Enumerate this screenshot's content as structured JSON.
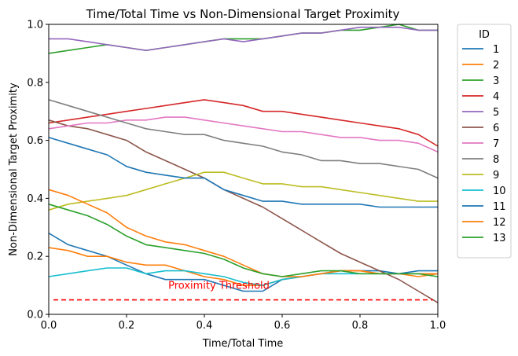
{
  "chart_data": {
    "type": "line",
    "title": "Time/Total Time vs Non-Dimensional Target Proximity",
    "xlabel": "Time/Total Time",
    "ylabel": "Non-Dimensional Target Proximity",
    "xlim": [
      0,
      1
    ],
    "ylim": [
      0,
      1
    ],
    "xticks": [
      "0.0",
      "0.2",
      "0.4",
      "0.6",
      "0.8",
      "1.0"
    ],
    "yticks": [
      "0.0",
      "0.2",
      "0.4",
      "0.6",
      "0.8",
      "1.0"
    ],
    "grid": false,
    "legend": {
      "title": "ID",
      "placement": "outside-right"
    },
    "threshold": {
      "y": 0.05,
      "label": "Proximity Threshold",
      "color": "#ff0000",
      "style": "dashed"
    },
    "x": [
      0.0,
      0.05,
      0.1,
      0.15,
      0.2,
      0.25,
      0.3,
      0.35,
      0.4,
      0.45,
      0.5,
      0.55,
      0.6,
      0.65,
      0.7,
      0.75,
      0.8,
      0.85,
      0.9,
      0.95,
      1.0
    ],
    "series": [
      {
        "name": "1",
        "color": "#1f77b4",
        "values": [
          0.28,
          0.24,
          0.22,
          0.2,
          0.17,
          0.14,
          0.12,
          0.12,
          0.12,
          0.1,
          0.08,
          0.08,
          0.12,
          0.13,
          0.14,
          0.15,
          0.15,
          0.15,
          0.14,
          0.15,
          0.15
        ]
      },
      {
        "name": "2",
        "color": "#ff7f0e",
        "values": [
          0.23,
          0.22,
          0.2,
          0.2,
          0.18,
          0.17,
          0.17,
          0.15,
          0.13,
          0.12,
          0.1,
          0.1,
          0.12,
          0.13,
          0.14,
          0.15,
          0.15,
          0.14,
          0.14,
          0.13,
          0.14
        ]
      },
      {
        "name": "3",
        "color": "#2ca02c",
        "values": [
          0.9,
          0.91,
          0.92,
          0.93,
          0.92,
          0.91,
          0.92,
          0.93,
          0.94,
          0.95,
          0.95,
          0.95,
          0.96,
          0.97,
          0.97,
          0.98,
          0.98,
          0.99,
          1.0,
          0.98,
          0.98
        ]
      },
      {
        "name": "4",
        "color": "#d62728",
        "values": [
          0.66,
          0.67,
          0.68,
          0.69,
          0.7,
          0.71,
          0.72,
          0.73,
          0.74,
          0.73,
          0.72,
          0.7,
          0.7,
          0.69,
          0.68,
          0.67,
          0.66,
          0.65,
          0.64,
          0.62,
          0.58
        ]
      },
      {
        "name": "5",
        "color": "#9467bd",
        "values": [
          0.95,
          0.95,
          0.94,
          0.93,
          0.92,
          0.91,
          0.92,
          0.93,
          0.94,
          0.95,
          0.94,
          0.95,
          0.96,
          0.97,
          0.97,
          0.98,
          0.99,
          0.99,
          0.99,
          0.98,
          0.98
        ]
      },
      {
        "name": "6",
        "color": "#8c564b",
        "values": [
          0.67,
          0.65,
          0.64,
          0.62,
          0.6,
          0.56,
          0.53,
          0.5,
          0.47,
          0.43,
          0.4,
          0.37,
          0.33,
          0.29,
          0.25,
          0.21,
          0.18,
          0.15,
          0.12,
          0.08,
          0.04
        ]
      },
      {
        "name": "7",
        "color": "#e377c2",
        "values": [
          0.64,
          0.65,
          0.66,
          0.66,
          0.67,
          0.67,
          0.68,
          0.68,
          0.67,
          0.66,
          0.65,
          0.64,
          0.63,
          0.63,
          0.62,
          0.61,
          0.61,
          0.6,
          0.6,
          0.59,
          0.56
        ]
      },
      {
        "name": "8",
        "color": "#7f7f7f",
        "values": [
          0.74,
          0.72,
          0.7,
          0.68,
          0.66,
          0.64,
          0.63,
          0.62,
          0.62,
          0.6,
          0.59,
          0.58,
          0.56,
          0.55,
          0.53,
          0.53,
          0.52,
          0.52,
          0.51,
          0.5,
          0.47
        ]
      },
      {
        "name": "9",
        "color": "#bcbd22",
        "values": [
          0.36,
          0.38,
          0.39,
          0.4,
          0.41,
          0.43,
          0.45,
          0.47,
          0.49,
          0.49,
          0.47,
          0.45,
          0.45,
          0.44,
          0.44,
          0.43,
          0.42,
          0.41,
          0.4,
          0.39,
          0.39
        ]
      },
      {
        "name": "10",
        "color": "#17becf",
        "values": [
          0.13,
          0.14,
          0.15,
          0.16,
          0.16,
          0.14,
          0.15,
          0.15,
          0.14,
          0.13,
          0.11,
          0.1,
          0.12,
          0.13,
          0.14,
          0.14,
          0.14,
          0.14,
          0.14,
          0.14,
          0.14
        ]
      },
      {
        "name": "11",
        "color": "#1f77b4",
        "values": [
          0.61,
          0.59,
          0.57,
          0.55,
          0.51,
          0.49,
          0.48,
          0.47,
          0.47,
          0.43,
          0.41,
          0.39,
          0.39,
          0.38,
          0.38,
          0.38,
          0.38,
          0.37,
          0.37,
          0.37,
          0.37
        ]
      },
      {
        "name": "12",
        "color": "#ff7f0e",
        "values": [
          0.43,
          0.41,
          0.38,
          0.35,
          0.3,
          0.27,
          0.25,
          0.24,
          0.22,
          0.2,
          0.17,
          0.14,
          0.13,
          0.13,
          0.14,
          0.15,
          0.15,
          0.14,
          0.14,
          0.14,
          0.14
        ]
      },
      {
        "name": "13",
        "color": "#2ca02c",
        "values": [
          0.38,
          0.36,
          0.34,
          0.31,
          0.27,
          0.24,
          0.23,
          0.22,
          0.21,
          0.19,
          0.16,
          0.14,
          0.13,
          0.14,
          0.15,
          0.15,
          0.14,
          0.14,
          0.14,
          0.14,
          0.13
        ]
      }
    ]
  }
}
